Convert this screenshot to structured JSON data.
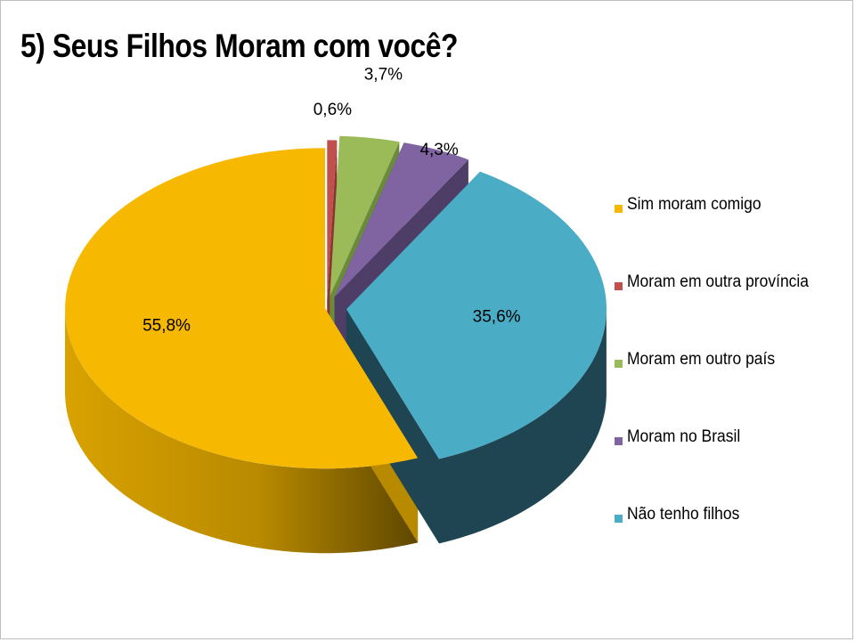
{
  "title": "5) Seus Filhos Moram com você?",
  "chart_data": {
    "type": "pie",
    "style": "3d-exploded",
    "legend_position": "right",
    "slices": [
      {
        "name": "Sim moram comigo",
        "value": 55.8,
        "label": "55,8%",
        "color": "#f6b800",
        "side_color": "#b88a00"
      },
      {
        "name": "Moram em outra província",
        "value": 0.6,
        "label": "0,6%",
        "color": "#c0504d",
        "side_color": "#8a3532"
      },
      {
        "name": "Moram em outro país",
        "value": 3.7,
        "label": "3,7%",
        "color": "#9bbb59",
        "side_color": "#6b8a3a"
      },
      {
        "name": "Moram no Brasil",
        "value": 4.3,
        "label": "4,3%",
        "color": "#8064a2",
        "side_color": "#4e3d66"
      },
      {
        "name": "Não tenho filhos",
        "value": 35.6,
        "label": "35,6%",
        "color": "#4bacc6",
        "side_color": "#1f4452"
      }
    ]
  }
}
